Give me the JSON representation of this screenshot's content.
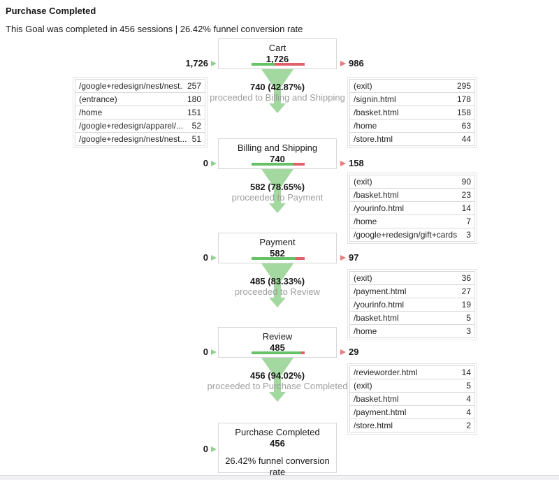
{
  "header": {
    "title": "Purchase Completed",
    "subtitle": "This Goal was completed in 456 sessions | 26.42% funnel conversion rate"
  },
  "colors": {
    "funnel_green": "#a3d9a0",
    "bar_green": "#67c267",
    "bar_red": "#e2606a",
    "tri_green": "#8fd18f",
    "tri_red": "#ed7a7a",
    "text_gray": "#9e9e9e"
  },
  "funnel": {
    "steps": [
      {
        "name": "Cart",
        "count": "1,726",
        "entering": "1,726",
        "exiting": "986",
        "bar_green_pct": 42.87,
        "proceed_main": "740 (42.87%)",
        "proceed_sub": "proceeded to Billing and Shipping",
        "entry_table": [
          {
            "label": "/google+redesign/nest/nest...",
            "value": "257"
          },
          {
            "label": "(entrance)",
            "value": "180"
          },
          {
            "label": "/home",
            "value": "151"
          },
          {
            "label": "/google+redesign/apparel/...",
            "value": "52"
          },
          {
            "label": "/google+redesign/nest/nest...",
            "value": "51"
          }
        ],
        "exit_table": [
          {
            "label": "(exit)",
            "value": "295"
          },
          {
            "label": "/signin.html",
            "value": "178"
          },
          {
            "label": "/basket.html",
            "value": "158"
          },
          {
            "label": "/home",
            "value": "63"
          },
          {
            "label": "/store.html",
            "value": "44"
          }
        ]
      },
      {
        "name": "Billing and Shipping",
        "count": "740",
        "entering": "0",
        "exiting": "158",
        "bar_green_pct": 78.65,
        "proceed_main": "582 (78.65%)",
        "proceed_sub": "proceeded to Payment",
        "exit_table": [
          {
            "label": "(exit)",
            "value": "90"
          },
          {
            "label": "/basket.html",
            "value": "23"
          },
          {
            "label": "/yourinfo.html",
            "value": "14"
          },
          {
            "label": "/home",
            "value": "7"
          },
          {
            "label": "/google+redesign/gift+cards",
            "value": "3"
          }
        ]
      },
      {
        "name": "Payment",
        "count": "582",
        "entering": "0",
        "exiting": "97",
        "bar_green_pct": 83.33,
        "proceed_main": "485 (83.33%)",
        "proceed_sub": "proceeded to Review",
        "exit_table": [
          {
            "label": "(exit)",
            "value": "36"
          },
          {
            "label": "/payment.html",
            "value": "27"
          },
          {
            "label": "/yourinfo.html",
            "value": "19"
          },
          {
            "label": "/basket.html",
            "value": "5"
          },
          {
            "label": "/home",
            "value": "3"
          }
        ]
      },
      {
        "name": "Review",
        "count": "485",
        "entering": "0",
        "exiting": "29",
        "bar_green_pct": 94.02,
        "proceed_main": "456 (94.02%)",
        "proceed_sub": "proceeded to Purchase Completed",
        "exit_table": [
          {
            "label": "/revieworder.html",
            "value": "14"
          },
          {
            "label": "(exit)",
            "value": "5"
          },
          {
            "label": "/basket.html",
            "value": "4"
          },
          {
            "label": "/payment.html",
            "value": "4"
          },
          {
            "label": "/store.html",
            "value": "2"
          }
        ]
      },
      {
        "name": "Purchase Completed",
        "count": "456",
        "entering": "0",
        "note": "26.42% funnel conversion rate"
      }
    ]
  },
  "chart_data": {
    "type": "funnel",
    "title": "Purchase Completed",
    "subtitle": "This Goal was completed in 456 sessions | 26.42% funnel conversion rate",
    "goal_sessions": 456,
    "funnel_conversion_rate_pct": 26.42,
    "stages": [
      {
        "name": "Cart",
        "sessions": 1726,
        "entering": 1726,
        "exiting": 986,
        "proceeded": 740,
        "proceed_rate_pct": 42.87
      },
      {
        "name": "Billing and Shipping",
        "sessions": 740,
        "entering": 0,
        "exiting": 158,
        "proceeded": 582,
        "proceed_rate_pct": 78.65
      },
      {
        "name": "Payment",
        "sessions": 582,
        "entering": 0,
        "exiting": 97,
        "proceeded": 485,
        "proceed_rate_pct": 83.33
      },
      {
        "name": "Review",
        "sessions": 485,
        "entering": 0,
        "exiting": 29,
        "proceeded": 456,
        "proceed_rate_pct": 94.02
      },
      {
        "name": "Purchase Completed",
        "sessions": 456,
        "entering": 0
      }
    ]
  }
}
